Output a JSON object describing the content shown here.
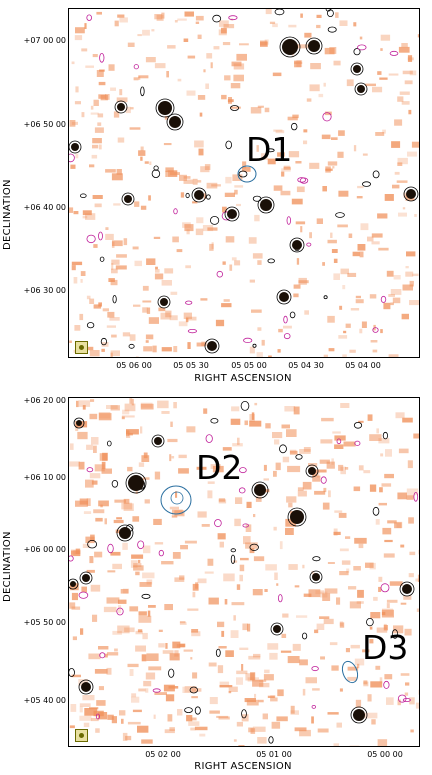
{
  "panels": [
    {
      "y_ticks": [
        "+07 00 00",
        "+06 50 00",
        "+06 40 00",
        "+06 30 00"
      ],
      "x_ticks": [
        "05 06 00",
        "05 05 30",
        "05 05 00",
        "05 04 30",
        "05 04 00"
      ],
      "x_label": "RIGHT ASCENSION",
      "y_label": "DECLINATION",
      "sources": [
        "D1"
      ]
    },
    {
      "y_ticks": [
        "+06 20 00",
        "+06 10 00",
        "+06 00 00",
        "+05 50 00",
        "+05 40 00"
      ],
      "x_ticks": [
        "05 02 00",
        "05 01 00",
        "05 00 00"
      ],
      "x_label": "RIGHT ASCENSION",
      "y_label": "DECLINATION",
      "sources": [
        "D2",
        "D3"
      ]
    }
  ],
  "colors": {
    "emission": "#f0905a",
    "contour_black": "#000000",
    "contour_magenta": "#c0209a",
    "contour_blue": "#2a6fa0"
  },
  "icons": [
    "beam-icon"
  ]
}
